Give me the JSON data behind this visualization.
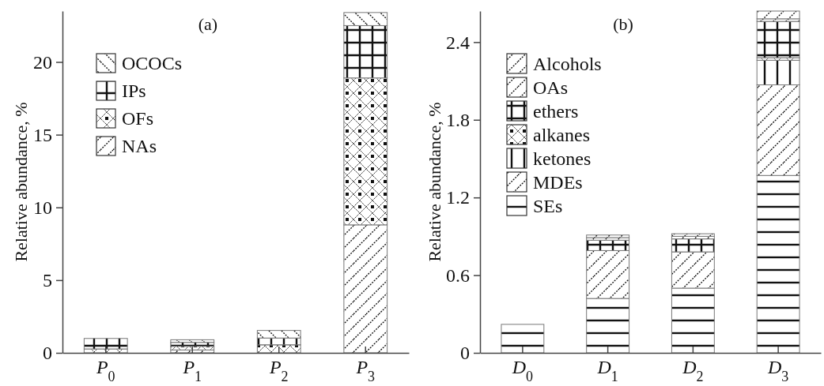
{
  "chart_data": [
    {
      "type": "bar",
      "title": "(a)",
      "ylabel": "Relative abundance, %",
      "categories": [
        "P$_{0}$",
        "P$_{1}$",
        "P$_{2}$",
        "P$_{3}$"
      ],
      "stacked": true,
      "ylim": [
        0,
        23.5
      ],
      "yticks": [
        0,
        5,
        10,
        15,
        20
      ],
      "legend": "top left",
      "series": [
        {
          "name": "NAs",
          "color": "#777777",
          "values": [
            0,
            0.2,
            0,
            8.8
          ]
        },
        {
          "name": "OFs",
          "color": "#777777",
          "values": [
            0.27,
            0.25,
            0.55,
            10.1
          ]
        },
        {
          "name": "IPs",
          "color": "#777777",
          "values": [
            0.72,
            0.27,
            0.47,
            3.6
          ]
        },
        {
          "name": "OCOCs",
          "color": "#777777",
          "values": [
            0,
            0.18,
            0.52,
            0.9
          ]
        }
      ]
    },
    {
      "type": "bar",
      "title": "(b)",
      "ylabel": "Relative abundance, %",
      "categories": [
        "D$_{0}$",
        "D$_{1}$",
        "D$_{2}$",
        "D$_{3}$"
      ],
      "stacked": true,
      "ylim": [
        0,
        2.64
      ],
      "yticks": [
        {
          "value": 0,
          "label": "0"
        },
        {
          "value": 0.6,
          "label": "0.6"
        },
        {
          "value": 1.2,
          "label": "1.2"
        },
        {
          "value": 1.8,
          "label": "1.8"
        },
        {
          "value": 2.4,
          "label": "2.4"
        }
      ],
      "legend": "top left",
      "series": [
        {
          "name": "SEs",
          "color": "#777777",
          "values": [
            0.22,
            0.42,
            0.5,
            1.37
          ]
        },
        {
          "name": "MDEs",
          "color": "#777777",
          "values": [
            0,
            0.37,
            0.28,
            0.7
          ]
        },
        {
          "name": "ketones",
          "color": "#777777",
          "values": [
            0,
            0,
            0,
            0.19
          ]
        },
        {
          "name": "alkanes",
          "color": "#777777",
          "values": [
            0,
            0,
            0,
            0.02
          ]
        },
        {
          "name": "ethers",
          "color": "#777777",
          "values": [
            0,
            0.08,
            0.1,
            0.28
          ]
        },
        {
          "name": "OAs",
          "color": "#777777",
          "values": [
            0,
            0.02,
            0.02,
            0.02
          ]
        },
        {
          "name": "Alcohols",
          "color": "#777777",
          "values": [
            0,
            0.02,
            0.02,
            0.06
          ]
        }
      ]
    }
  ]
}
